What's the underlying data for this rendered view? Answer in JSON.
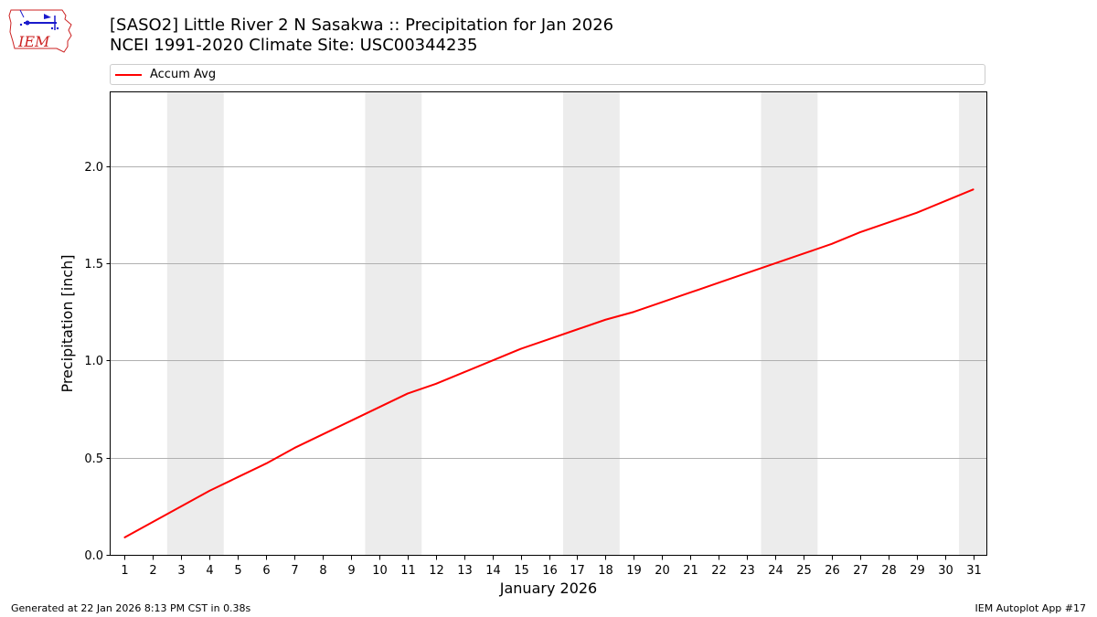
{
  "header": {
    "title_line1": "[SASO2] Little River 2 N Sasakwa :: Precipitation for Jan 2026",
    "title_line2": "NCEI 1991-2020 Climate Site: USC00344235",
    "logo_text": "IEM"
  },
  "footer": {
    "generated": "Generated at 22 Jan 2026 8:13 PM CST in 0.38s",
    "app": "IEM Autoplot App #17"
  },
  "colors": {
    "line": "#ff0000",
    "weekend_band": "#ececec",
    "grid": "#b0b0b0",
    "logo_red": "#cc2222",
    "logo_blue": "#1a1acc"
  },
  "chart_data": {
    "type": "line",
    "xlabel": "January 2026",
    "ylabel": "Precipitation [inch]",
    "categories": [
      "1",
      "2",
      "3",
      "4",
      "5",
      "6",
      "7",
      "8",
      "9",
      "10",
      "11",
      "12",
      "13",
      "14",
      "15",
      "16",
      "17",
      "18",
      "19",
      "20",
      "21",
      "22",
      "23",
      "24",
      "25",
      "26",
      "27",
      "28",
      "29",
      "30",
      "31"
    ],
    "x": [
      1,
      2,
      3,
      4,
      5,
      6,
      7,
      8,
      9,
      10,
      11,
      12,
      13,
      14,
      15,
      16,
      17,
      18,
      19,
      20,
      21,
      22,
      23,
      24,
      25,
      26,
      27,
      28,
      29,
      30,
      31
    ],
    "series": [
      {
        "name": "Accum Avg",
        "values": [
          0.09,
          0.17,
          0.25,
          0.33,
          0.4,
          0.47,
          0.55,
          0.62,
          0.69,
          0.76,
          0.83,
          0.88,
          0.94,
          1.0,
          1.06,
          1.11,
          1.16,
          1.21,
          1.25,
          1.3,
          1.35,
          1.4,
          1.45,
          1.5,
          1.55,
          1.6,
          1.66,
          1.71,
          1.76,
          1.82,
          1.88
        ]
      }
    ],
    "xlim": [
      0.5,
      31.5
    ],
    "ylim": [
      0,
      2.38
    ],
    "yticks": [
      0.0,
      0.5,
      1.0,
      1.5,
      2.0
    ],
    "ytick_labels": [
      "0.0",
      "0.5",
      "1.0",
      "1.5",
      "2.0"
    ],
    "grid": "horizontal",
    "legend": "top, above plot",
    "weekend_bands": [
      [
        2.5,
        4.5
      ],
      [
        9.5,
        11.5
      ],
      [
        16.5,
        18.5
      ],
      [
        23.5,
        25.5
      ],
      [
        30.5,
        31.5
      ]
    ]
  }
}
